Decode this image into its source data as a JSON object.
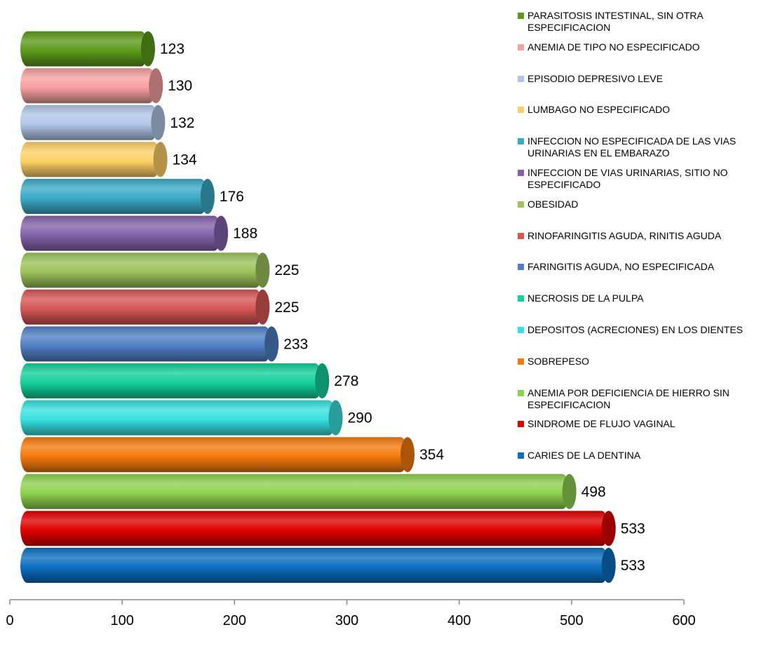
{
  "chart_data": {
    "type": "bar",
    "orientation": "horizontal",
    "style": "3d-cylinder",
    "categories": [
      "CARIES DE LA DENTINA",
      "SINDROME DE FLUJO VAGINAL",
      "ANEMIA POR DEFICIENCIA DE HIERRO SIN ESPECIFICACION",
      "SOBREPESO",
      "DEPOSITOS (ACRECIONES) EN LOS DIENTES",
      "NECROSIS DE LA PULPA",
      "FARINGITIS AGUDA, NO ESPECIFICADA",
      "RINOFARINGITIS AGUDA, RINITIS AGUDA",
      "OBESIDAD",
      "INFECCION DE VIAS URINARIAS, SITIO NO ESPECIFICADO",
      "INFECCION NO ESPECIFICADA DE LAS VIAS URINARIAS EN EL EMBARAZO",
      "LUMBAGO NO ESPECIFICADO",
      "EPISODIO DEPRESIVO LEVE",
      "ANEMIA DE TIPO NO ESPECIFICADO",
      "PARASITOSIS INTESTINAL, SIN OTRA ESPECIFICACION"
    ],
    "values": [
      533,
      533,
      498,
      354,
      290,
      278,
      233,
      225,
      225,
      188,
      176,
      134,
      132,
      130,
      123
    ],
    "colors": [
      "#0b6fc0",
      "#e00000",
      "#8fd14f",
      "#f57a0c",
      "#37e0e0",
      "#14d19a",
      "#4f7fc5",
      "#d65654",
      "#9dc35a",
      "#8462ab",
      "#3aaac6",
      "#fdd067",
      "#b3c6e7",
      "#f7a0a0",
      "#5c9b1a"
    ],
    "xlim": [
      0,
      600
    ],
    "xticks": [
      "0",
      "100",
      "200",
      "300",
      "400",
      "500",
      "600"
    ],
    "title": "",
    "xlabel": "",
    "ylabel": "",
    "legend_position": "right",
    "grid": false
  }
}
